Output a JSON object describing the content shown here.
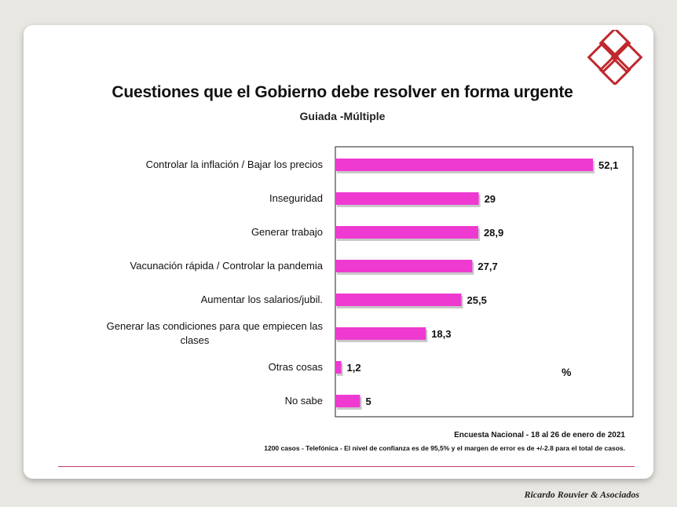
{
  "colors": {
    "bar": "#ee3ad1",
    "logo": "#c0282d"
  },
  "header": {
    "title": "Cuestiones que el Gobierno debe resolver en forma urgente",
    "subtitle": "Guiada -Múltiple"
  },
  "chart_data": {
    "type": "bar",
    "orientation": "horizontal",
    "categories": [
      "Controlar la inflación / Bajar los precios",
      "Inseguridad",
      "Generar trabajo",
      "Vacunación rápida / Controlar la pandemia",
      "Aumentar los salarios/jubil.",
      "Generar las condiciones para que empiecen las clases",
      "Otras cosas",
      "No sabe"
    ],
    "category_lines": [
      [
        "Controlar la inflación / Bajar los precios"
      ],
      [
        "Inseguridad"
      ],
      [
        "Generar trabajo"
      ],
      [
        "Vacunación rápida / Controlar la pandemia"
      ],
      [
        "Aumentar los salarios/jubil."
      ],
      [
        "Generar las condiciones para que empiecen las",
        "clases"
      ],
      [
        "Otras cosas"
      ],
      [
        "No sabe"
      ]
    ],
    "values": [
      52.1,
      29,
      28.9,
      27.7,
      25.5,
      18.3,
      1.2,
      5
    ],
    "value_labels": [
      "52,1",
      "29",
      "28,9",
      "27,7",
      "25,5",
      "18,3",
      "1,2",
      "5"
    ],
    "unit": "%",
    "xlim": [
      0,
      60
    ],
    "grid": false,
    "legend": "none"
  },
  "footer": {
    "survey": "Encuesta Nacional - 18 al 26 de enero de 2021",
    "method": "1200 casos - Telefónica - El nivel de confianza es de 95,5% y el margen de error es de +/-2.8 para el total de casos.",
    "brand": "Ricardo Rouvier & Asociados"
  }
}
